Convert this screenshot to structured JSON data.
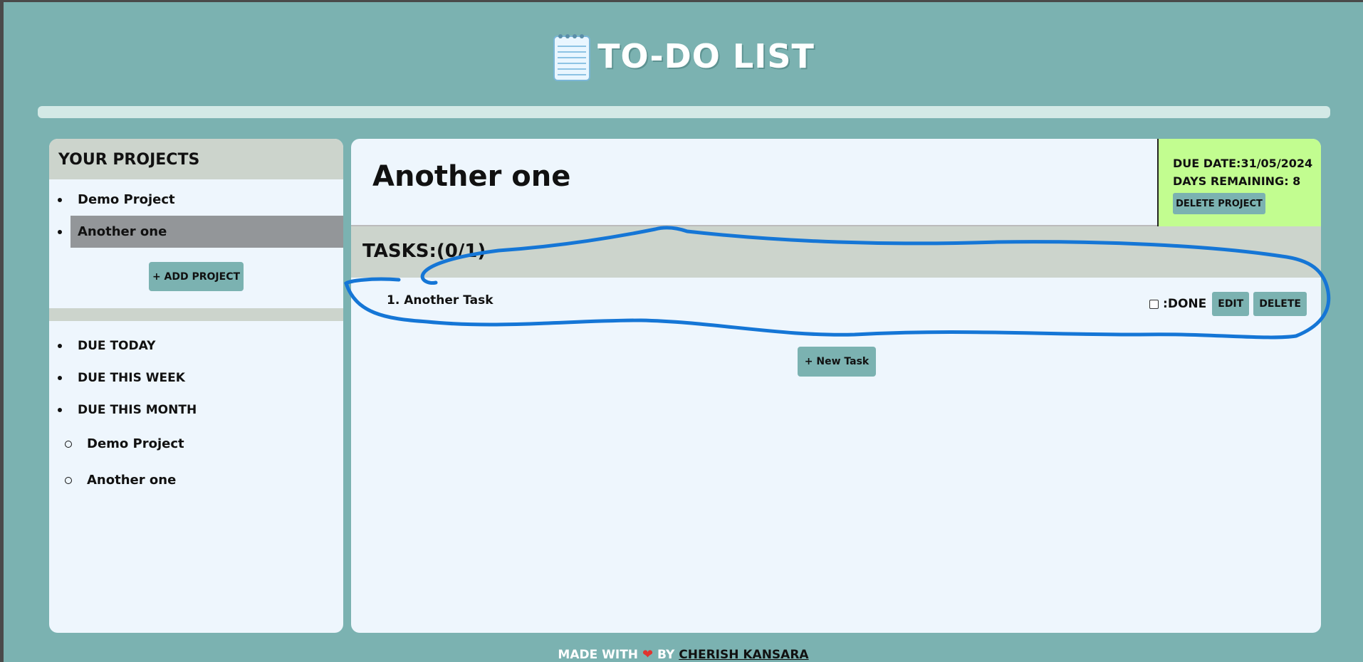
{
  "app": {
    "title": "TO-DO LIST",
    "icon": "notepad-icon"
  },
  "sidebar": {
    "heading": "YOUR PROJECTS",
    "projects": [
      {
        "label": "Demo Project"
      },
      {
        "label": "Another one"
      }
    ],
    "active_project_index": 1,
    "add_project_label": "+ ADD PROJECT",
    "due_filters": [
      {
        "label": "DUE TODAY"
      },
      {
        "label": "DUE THIS WEEK"
      },
      {
        "label": "DUE THIS MONTH"
      }
    ],
    "due_this_month_projects": [
      {
        "label": "Demo Project"
      },
      {
        "label": "Another one"
      }
    ]
  },
  "main": {
    "project_title": "Another one",
    "due_date": "DUE DATE:31/05/2024",
    "days_remaining": "DAYS REMAINING: 8",
    "delete_project_label": "DELETE PROJECT",
    "tasks_heading": "TASKS:(0/1)",
    "tasks": [
      {
        "name": "1. Another Task",
        "done": false
      }
    ],
    "done_label": ":DONE",
    "edit_label": "EDIT",
    "delete_label": "DELETE",
    "new_task_label": "+ New Task"
  },
  "footer": {
    "made_with": "MADE WITH",
    "heart": "❤",
    "by": "BY",
    "author": "CHERISH KANSARA"
  },
  "colors": {
    "background": "#7bb2b1",
    "panel": "#eef6fd",
    "section_header": "#ccd4cc",
    "active_item": "#939699",
    "due_box": "#c2fd90",
    "button": "#7bb2b1",
    "annotation_stroke": "#1576d6"
  }
}
